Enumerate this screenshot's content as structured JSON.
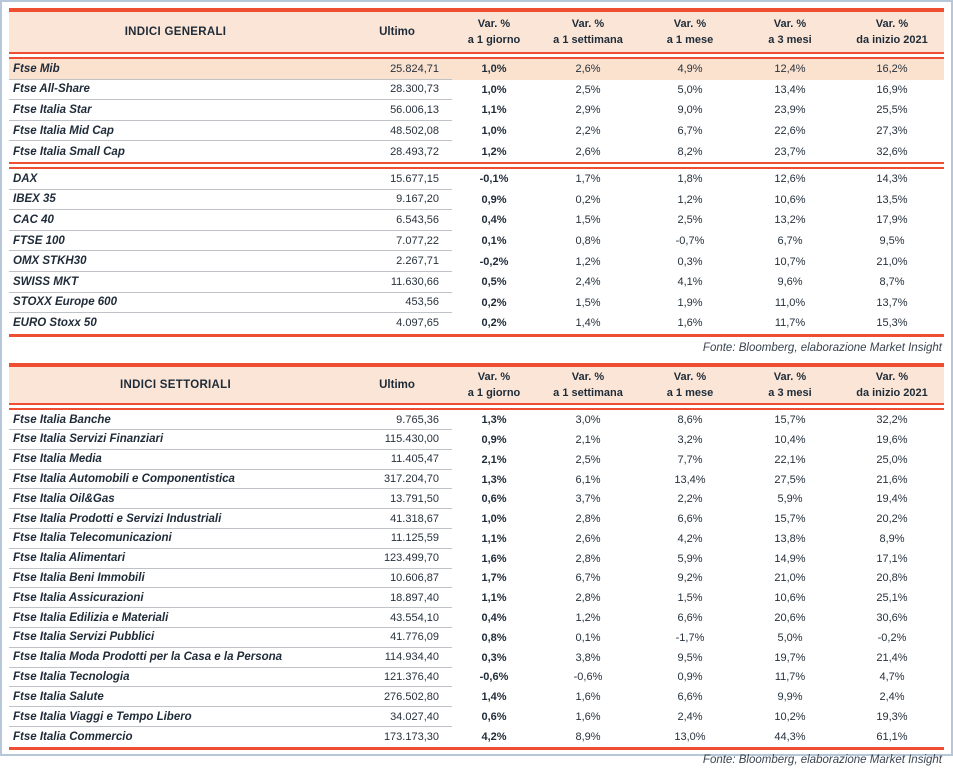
{
  "colors": {
    "accent_red": "#F04E33",
    "header_bg": "#FBE5D6",
    "highlight_row_bg": "#FBE2CF",
    "separator_gray": "#BFC3C7",
    "frame_border": "#B5C7D9",
    "text_dark": "#1F2B38"
  },
  "header_labels": {
    "var_pct": "Var. %",
    "ultimo": "Ultimo",
    "periods": [
      "a 1 giorno",
      "a 1 settimana",
      "a 1 mese",
      "a 3 mesi",
      "da inizio 2021"
    ]
  },
  "fonte": "Fonte: Bloomberg, elaborazione Market Insight",
  "tables": [
    {
      "title": "INDICI GENERALI",
      "rows": [
        {
          "name": "Ftse Mib",
          "ultimo": "25.824,71",
          "values": [
            "1,0%",
            "2,6%",
            "4,9%",
            "12,4%",
            "16,2%"
          ],
          "highlight": true
        },
        {
          "name": "Ftse All-Share",
          "ultimo": "28.300,73",
          "values": [
            "1,0%",
            "2,5%",
            "5,0%",
            "13,4%",
            "16,9%"
          ]
        },
        {
          "name": "Ftse Italia Star",
          "ultimo": "56.006,13",
          "values": [
            "1,1%",
            "2,9%",
            "9,0%",
            "23,9%",
            "25,5%"
          ]
        },
        {
          "name": "Ftse Italia Mid Cap",
          "ultimo": "48.502,08",
          "values": [
            "1,0%",
            "2,2%",
            "6,7%",
            "22,6%",
            "27,3%"
          ]
        },
        {
          "name": "Ftse Italia Small Cap",
          "ultimo": "28.493,72",
          "values": [
            "1,2%",
            "2,6%",
            "8,2%",
            "23,7%",
            "32,6%"
          ],
          "group_end": true
        },
        {
          "name": "DAX",
          "ultimo": "15.677,15",
          "values": [
            "-0,1%",
            "1,7%",
            "1,8%",
            "12,6%",
            "14,3%"
          ]
        },
        {
          "name": "IBEX 35",
          "ultimo": "9.167,20",
          "values": [
            "0,9%",
            "0,2%",
            "1,2%",
            "10,6%",
            "13,5%"
          ]
        },
        {
          "name": "CAC 40",
          "ultimo": "6.543,56",
          "values": [
            "0,4%",
            "1,5%",
            "2,5%",
            "13,2%",
            "17,9%"
          ]
        },
        {
          "name": "FTSE 100",
          "ultimo": "7.077,22",
          "values": [
            "0,1%",
            "0,8%",
            "-0,7%",
            "6,7%",
            "9,5%"
          ]
        },
        {
          "name": "OMX STKH30",
          "ultimo": "2.267,71",
          "values": [
            "-0,2%",
            "1,2%",
            "0,3%",
            "10,7%",
            "21,0%"
          ]
        },
        {
          "name": "SWISS MKT",
          "ultimo": "11.630,66",
          "values": [
            "0,5%",
            "2,4%",
            "4,1%",
            "9,6%",
            "8,7%"
          ]
        },
        {
          "name": "STOXX Europe 600",
          "ultimo": "453,56",
          "values": [
            "0,2%",
            "1,5%",
            "1,9%",
            "11,0%",
            "13,7%"
          ]
        },
        {
          "name": "EURO Stoxx 50",
          "ultimo": "4.097,65",
          "values": [
            "0,2%",
            "1,4%",
            "1,6%",
            "11,7%",
            "15,3%"
          ],
          "last": true
        }
      ]
    },
    {
      "title": "INDICI SETTORIALI",
      "rows": [
        {
          "name": "Ftse Italia Banche",
          "ultimo": "9.765,36",
          "values": [
            "1,3%",
            "3,0%",
            "8,6%",
            "15,7%",
            "32,2%"
          ]
        },
        {
          "name": "Ftse Italia Servizi Finanziari",
          "ultimo": "115.430,00",
          "values": [
            "0,9%",
            "2,1%",
            "3,2%",
            "10,4%",
            "19,6%"
          ]
        },
        {
          "name": "Ftse Italia Media",
          "ultimo": "11.405,47",
          "values": [
            "2,1%",
            "2,5%",
            "7,7%",
            "22,1%",
            "25,0%"
          ]
        },
        {
          "name": "Ftse Italia Automobili e Componentistica",
          "ultimo": "317.204,70",
          "values": [
            "1,3%",
            "6,1%",
            "13,4%",
            "27,5%",
            "21,6%"
          ]
        },
        {
          "name": "Ftse Italia Oil&Gas",
          "ultimo": "13.791,50",
          "values": [
            "0,6%",
            "3,7%",
            "2,2%",
            "5,9%",
            "19,4%"
          ]
        },
        {
          "name": "Ftse Italia Prodotti e Servizi Industriali",
          "ultimo": "41.318,67",
          "values": [
            "1,0%",
            "2,8%",
            "6,6%",
            "15,7%",
            "20,2%"
          ]
        },
        {
          "name": "Ftse Italia Telecomunicazioni",
          "ultimo": "11.125,59",
          "values": [
            "1,1%",
            "2,6%",
            "4,2%",
            "13,8%",
            "8,9%"
          ]
        },
        {
          "name": "Ftse Italia Alimentari",
          "ultimo": "123.499,70",
          "values": [
            "1,6%",
            "2,8%",
            "5,9%",
            "14,9%",
            "17,1%"
          ]
        },
        {
          "name": "Ftse Italia Beni Immobili",
          "ultimo": "10.606,87",
          "values": [
            "1,7%",
            "6,7%",
            "9,2%",
            "21,0%",
            "20,8%"
          ]
        },
        {
          "name": "Ftse Italia Assicurazioni",
          "ultimo": "18.897,40",
          "values": [
            "1,1%",
            "2,8%",
            "1,5%",
            "10,6%",
            "25,1%"
          ]
        },
        {
          "name": "Ftse Italia Edilizia e Materiali",
          "ultimo": "43.554,10",
          "values": [
            "0,4%",
            "1,2%",
            "6,6%",
            "20,6%",
            "30,6%"
          ]
        },
        {
          "name": "Ftse Italia Servizi Pubblici",
          "ultimo": "41.776,09",
          "values": [
            "0,8%",
            "0,1%",
            "-1,7%",
            "5,0%",
            "-0,2%"
          ]
        },
        {
          "name": "Ftse Italia Moda Prodotti per la Casa e la Persona",
          "ultimo": "114.934,40",
          "values": [
            "0,3%",
            "3,8%",
            "9,5%",
            "19,7%",
            "21,4%"
          ]
        },
        {
          "name": "Ftse Italia Tecnologia",
          "ultimo": "121.376,40",
          "values": [
            "-0,6%",
            "-0,6%",
            "0,9%",
            "11,7%",
            "4,7%"
          ]
        },
        {
          "name": "Ftse Italia Salute",
          "ultimo": "276.502,80",
          "values": [
            "1,4%",
            "1,6%",
            "6,6%",
            "9,9%",
            "2,4%"
          ]
        },
        {
          "name": "Ftse Italia Viaggi e Tempo Libero",
          "ultimo": "34.027,40",
          "values": [
            "0,6%",
            "1,6%",
            "2,4%",
            "10,2%",
            "19,3%"
          ]
        },
        {
          "name": "Ftse Italia Commercio",
          "ultimo": "173.173,30",
          "values": [
            "4,2%",
            "8,9%",
            "13,0%",
            "44,3%",
            "61,1%"
          ],
          "last": true
        }
      ]
    }
  ]
}
